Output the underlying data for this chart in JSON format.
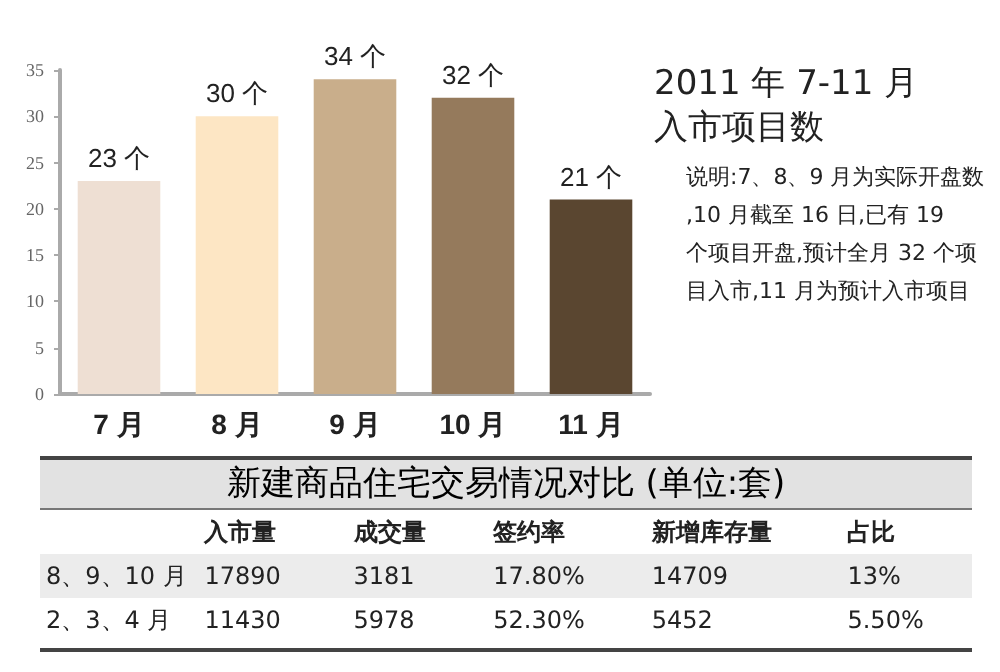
{
  "chart_data": [
    {
      "type": "bar",
      "title": "2011 年 7-11 月入市项目数",
      "categories": [
        "7 月",
        "8 月",
        "9 月",
        "10 月",
        "11 月"
      ],
      "values": [
        23,
        30,
        34,
        32,
        21
      ],
      "colors": [
        "#eedfd3",
        "#fde6c4",
        "#c9ae8b",
        "#957a5c",
        "#5a4630"
      ],
      "value_labels": [
        "23 个",
        "30 个",
        "34 个",
        "32 个",
        "21 个"
      ],
      "ylim": [
        0,
        35
      ],
      "yticks": [
        0,
        5,
        10,
        15,
        20,
        25,
        30,
        35
      ],
      "grid": false,
      "annotations": [
        "说明:7、8、9 月为实际开盘数,10 月截至 16 日,已有 19 个项目开盘,预计全月 32 个项目入市,11 月为预计入市项目"
      ]
    },
    {
      "type": "other",
      "title": "新建商品住宅交易情况对比 (单位:套)",
      "annotations": [
        "入市量",
        "成交量",
        "签约率",
        "新增库存量",
        "占比",
        "8、9、10 月",
        "17890",
        "3181",
        "17.80%",
        "14709",
        "13%",
        "2、3、4 月",
        "11430",
        "5978",
        "52.30%",
        "5452",
        "5.50%"
      ]
    }
  ]
}
